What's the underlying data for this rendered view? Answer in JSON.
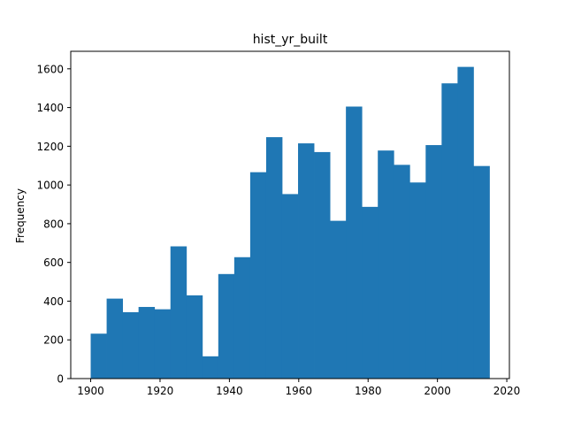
{
  "chart_data": {
    "type": "bar",
    "title": "hist_yr_built",
    "xlabel": "",
    "ylabel": "Frequency",
    "bin_edges": [
      1900,
      1904.6,
      1909.2,
      1913.8,
      1918.4,
      1923,
      1927.6,
      1932.2,
      1936.8,
      1941.4,
      1946,
      1950.6,
      1955.2,
      1959.8,
      1964.4,
      1969,
      1973.6,
      1978.2,
      1982.8,
      1987.4,
      1992,
      1996.6,
      2001.2,
      2005.8,
      2010.4,
      2015
    ],
    "values": [
      232,
      413,
      343,
      370,
      358,
      683,
      430,
      115,
      540,
      627,
      1066,
      1247,
      953,
      1215,
      1170,
      815,
      1405,
      887,
      1178,
      1104,
      1013,
      1206,
      1525,
      1610,
      1098
    ],
    "xlim": [
      1894.25,
      2020.75
    ],
    "ylim": [
      0,
      1690.5
    ],
    "xticks": [
      1900,
      1920,
      1940,
      1960,
      1980,
      2000,
      2020
    ],
    "yticks": [
      0,
      200,
      400,
      600,
      800,
      1000,
      1200,
      1400,
      1600
    ],
    "grid": false,
    "legend": "none",
    "bar_color": "#1f77b4"
  }
}
